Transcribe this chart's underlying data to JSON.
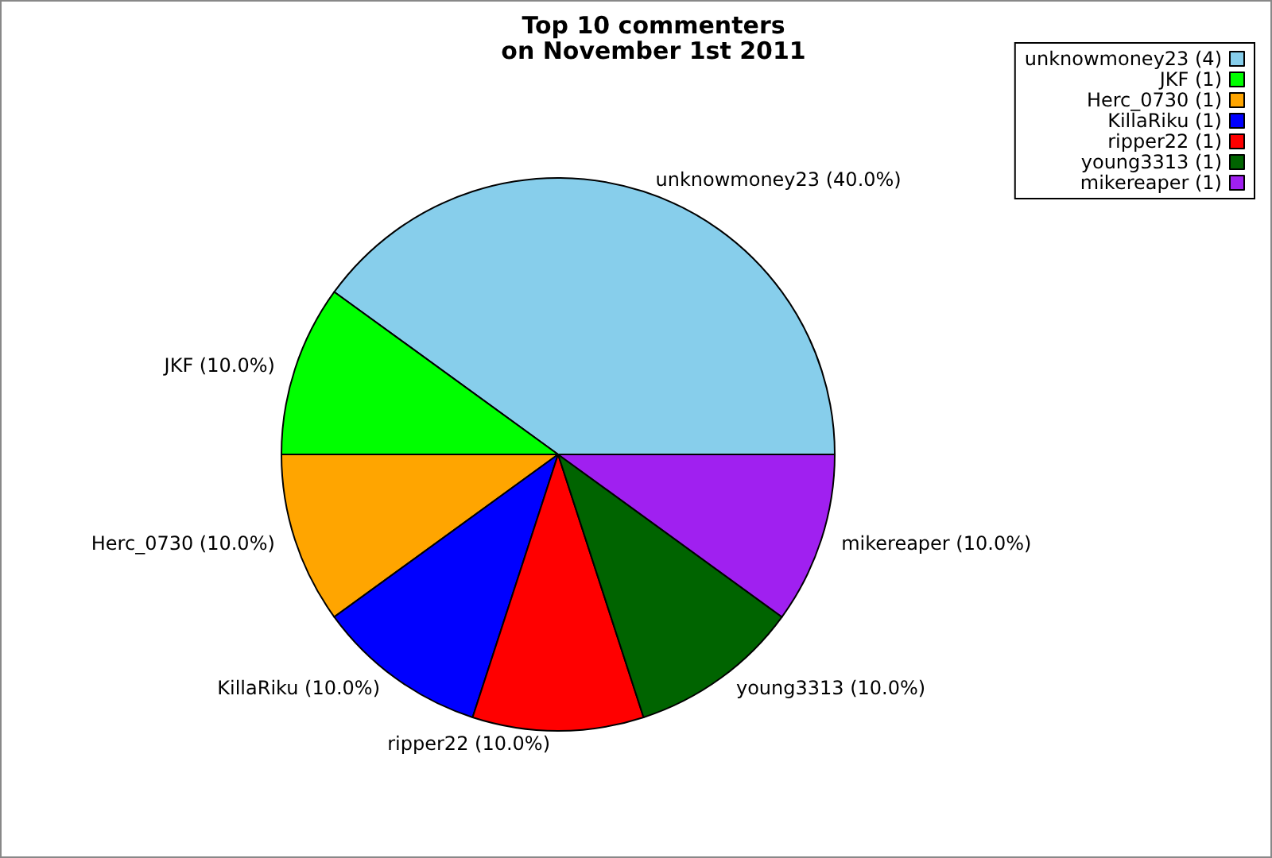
{
  "chart_data": {
    "type": "pie",
    "title": "Top 10 commenters\non November 1st 2011",
    "categories": [
      "unknowmoney23 (4)",
      "JKF (1)",
      "Herc_0730 (1)",
      "KillaRiku (1)",
      "ripper22 (1)",
      "young3313 (1)",
      "mikereaper (1)"
    ],
    "values": [
      40,
      10,
      10,
      10,
      10,
      10,
      10
    ],
    "value_labels": [
      "unknowmoney23 (40.0%)",
      "JKF (10.0%)",
      "Herc_0730 (10.0%)",
      "KillaRiku (10.0%)",
      "ripper22 (10.0%)",
      "young3313 (10.0%)",
      "mikereaper (10.0%)"
    ],
    "colors": [
      "#87ceeb",
      "#00ff00",
      "#ffa500",
      "#0000ff",
      "#ff0000",
      "#006400",
      "#a020f0"
    ],
    "legend": "top right"
  }
}
